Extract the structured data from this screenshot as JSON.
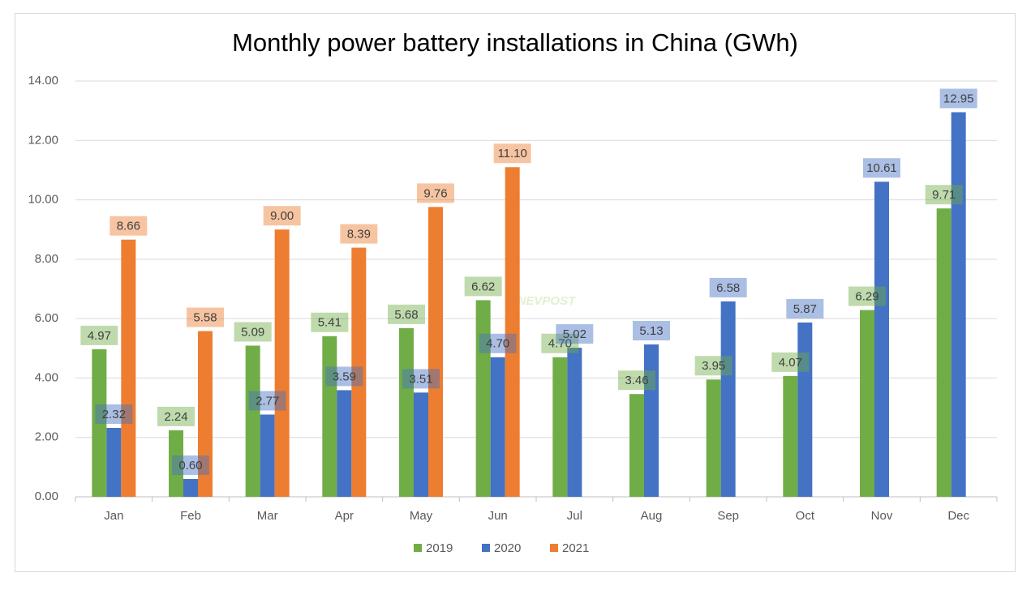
{
  "chart_data": {
    "type": "bar",
    "title": "Monthly power battery installations in China (GWh)",
    "watermark": "CNEVPOST",
    "categories": [
      "Jan",
      "Feb",
      "Mar",
      "Apr",
      "May",
      "Jun",
      "Jul",
      "Aug",
      "Sep",
      "Oct",
      "Nov",
      "Dec"
    ],
    "series": [
      {
        "name": "2019",
        "color": "#70ad47",
        "values": [
          4.97,
          2.24,
          5.09,
          5.41,
          5.68,
          6.62,
          4.7,
          3.46,
          3.95,
          4.07,
          6.29,
          9.71
        ],
        "value_labels": [
          "4.97",
          "2.24",
          "5.09",
          "5.41",
          "5.68",
          "6.62",
          "4.70",
          "3.46",
          "3.95",
          "4.07",
          "6.29",
          "9.71"
        ]
      },
      {
        "name": "2020",
        "color": "#4472c4",
        "values": [
          2.32,
          0.6,
          2.77,
          3.59,
          3.51,
          4.7,
          5.02,
          5.13,
          6.58,
          5.87,
          10.61,
          12.95
        ],
        "value_labels": [
          "2.32",
          "0.60",
          "2.77",
          "3.59",
          "3.51",
          "4.70",
          "5.02",
          "5.13",
          "6.58",
          "5.87",
          "10.61",
          "12.95"
        ]
      },
      {
        "name": "2021",
        "color": "#ed7d31",
        "values": [
          8.66,
          5.58,
          9.0,
          8.39,
          9.76,
          11.1,
          null,
          null,
          null,
          null,
          null,
          null
        ],
        "value_labels": [
          "8.66",
          "5.58",
          "9.00",
          "8.39",
          "9.76",
          "11.10",
          null,
          null,
          null,
          null,
          null,
          null
        ]
      }
    ],
    "ylim": [
      0,
      14
    ],
    "yticks": [
      {
        "value": 0,
        "label": "0.00"
      },
      {
        "value": 2,
        "label": "2.00"
      },
      {
        "value": 4,
        "label": "4.00"
      },
      {
        "value": 6,
        "label": "6.00"
      },
      {
        "value": 8,
        "label": "8.00"
      },
      {
        "value": 10,
        "label": "10.00"
      },
      {
        "value": 12,
        "label": "12.00"
      },
      {
        "value": 14,
        "label": "14.00"
      }
    ],
    "grid": true,
    "legend": "bottom"
  }
}
